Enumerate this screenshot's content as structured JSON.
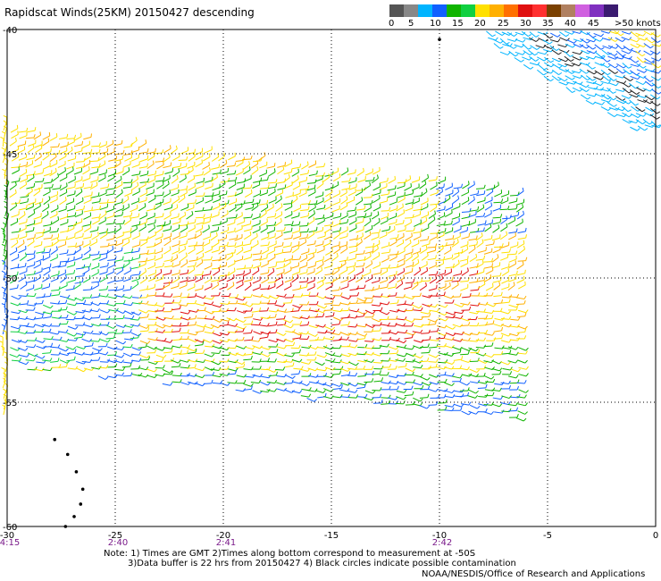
{
  "title": "Rapidscat Winds(25KM) 20150427 descending",
  "colorbar": {
    "swatches": [
      "#555555",
      "#888888",
      "#00b4ff",
      "#1060ff",
      "#10b400",
      "#10d040",
      "#ffe000",
      "#ffb000",
      "#ff7000",
      "#e01010",
      "#ff3030",
      "#7a4000",
      "#b08060",
      "#d060e0",
      "#8030c0",
      "#3a1a70"
    ],
    "labels": [
      "0",
      "5",
      "10",
      "15",
      "20",
      "25",
      "30",
      "35",
      "40",
      "45",
      ">50 knots"
    ]
  },
  "chart_data": {
    "type": "wind-barb-map",
    "lon_range": [
      -30,
      0
    ],
    "lat_range": [
      -60,
      -40
    ],
    "x_tick_labels": [
      "-30",
      "-25",
      "-20",
      "-15",
      "-10",
      "-5",
      "0"
    ],
    "y_tick_labels": [
      "-40",
      "-45",
      "-50",
      "-55",
      "-60"
    ],
    "time_labels": [
      {
        "lon": -30,
        "text": "4:15"
      },
      {
        "lon": -25,
        "text": "2:40"
      },
      {
        "lon": -20,
        "text": "2:41"
      },
      {
        "lon": -10,
        "text": "2:42"
      }
    ],
    "contamination_points": [
      {
        "lon": -10,
        "lat": -40.4
      },
      {
        "lon": -27.8,
        "lat": -56.5
      },
      {
        "lon": -27.2,
        "lat": -57.1
      },
      {
        "lon": -26.8,
        "lat": -57.8
      },
      {
        "lon": -26.5,
        "lat": -58.5
      },
      {
        "lon": -26.6,
        "lat": -59.1
      },
      {
        "lon": -26.9,
        "lat": -59.6
      },
      {
        "lon": -27.3,
        "lat": -60
      }
    ]
  },
  "notes": {
    "line1": "Note: 1) Times are GMT 2)Times along bottom correspond to measurement at -50S",
    "line2": "3)Data buffer is 22 hrs from 20150427 4) Black circles indicate possible contamination",
    "credit": "NOAA/NESDIS/Office of Research and Applications"
  }
}
